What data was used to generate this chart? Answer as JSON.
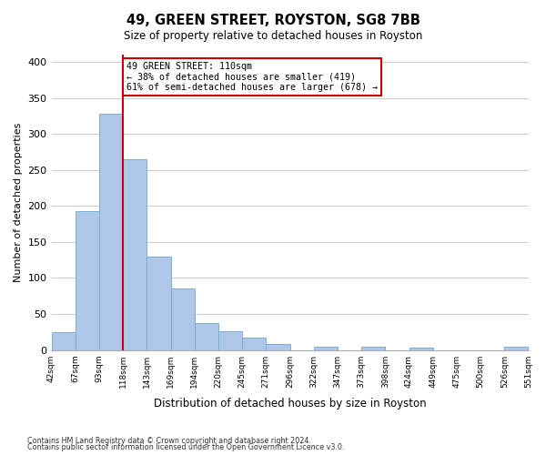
{
  "title": "49, GREEN STREET, ROYSTON, SG8 7BB",
  "subtitle": "Size of property relative to detached houses in Royston",
  "xlabel": "Distribution of detached houses by size in Royston",
  "ylabel": "Number of detached properties",
  "bar_values": [
    25,
    193,
    328,
    265,
    130,
    86,
    38,
    26,
    17,
    8,
    0,
    5,
    0,
    4,
    0,
    3,
    0,
    0,
    0,
    4
  ],
  "bin_labels": [
    "42sqm",
    "67sqm",
    "93sqm",
    "118sqm",
    "143sqm",
    "169sqm",
    "194sqm",
    "220sqm",
    "245sqm",
    "271sqm",
    "296sqm",
    "322sqm",
    "347sqm",
    "373sqm",
    "398sqm",
    "424sqm",
    "449sqm",
    "475sqm",
    "500sqm",
    "526sqm",
    "551sqm"
  ],
  "bar_color": "#aec6e8",
  "bar_edge_color": "#7aafd4",
  "vline_color": "#cc0000",
  "annotation_text": "49 GREEN STREET: 110sqm\n← 38% of detached houses are smaller (419)\n61% of semi-detached houses are larger (678) →",
  "annotation_box_color": "#ffffff",
  "annotation_box_edge": "#cc0000",
  "ylim": [
    0,
    410
  ],
  "yticks": [
    0,
    50,
    100,
    150,
    200,
    250,
    300,
    350,
    400
  ],
  "footnote1": "Contains HM Land Registry data © Crown copyright and database right 2024.",
  "footnote2": "Contains public sector information licensed under the Open Government Licence v3.0.",
  "bg_color": "#ffffff",
  "grid_color": "#cccccc"
}
